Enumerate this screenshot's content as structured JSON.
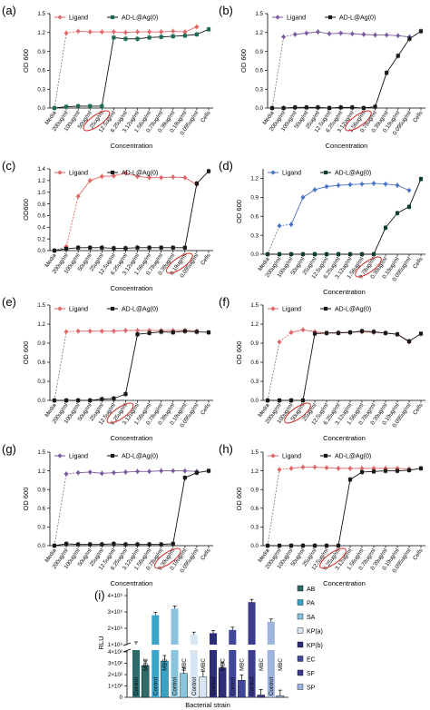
{
  "chart_data": [
    {
      "panel": "(a)",
      "type": "line",
      "categories": [
        "Media",
        "200ug/ml",
        "100ug/ml",
        "50ug/ml",
        "25ug/ml",
        "12.5ug/ml",
        "6.25ug/ml",
        "3.12ug/ml",
        "1.56ug/ml",
        "0.78ug/ml",
        "0.39ug/ml",
        "0.19ug/ml",
        "0.095ug/ml",
        "Cells"
      ],
      "circled": [
        "25ug/ml"
      ],
      "xlabel": "Concentration",
      "ylabel": "OD 600",
      "yticks": [
        "0.0",
        "0.3",
        "0.6",
        "0.9",
        "1.2",
        "1.5"
      ],
      "ylim": [
        0,
        1.5
      ],
      "series": [
        {
          "name": "Ligand",
          "color": "#e06666",
          "values": [
            null,
            1.19,
            1.22,
            1.21,
            1.21,
            1.21,
            1.2,
            1.21,
            1.21,
            1.21,
            1.22,
            1.21,
            1.29,
            null
          ]
        },
        {
          "name": "AD-L@Ag(0)",
          "color": "#1b6b57",
          "values": [
            0.0,
            0.02,
            0.03,
            0.03,
            0.03,
            1.12,
            1.1,
            1.1,
            1.12,
            1.13,
            1.14,
            1.15,
            1.17,
            1.25
          ]
        }
      ]
    },
    {
      "panel": "(b)",
      "type": "line",
      "categories": [
        "Media",
        "200ug/ml",
        "100ug/ml",
        "50ug/ml",
        "25ug/ml",
        "12.5ug/ml",
        "6.25ug/ml",
        "3.12ug/ml",
        "1.56ug/ml",
        "0.78ug/ml",
        "0.39ug/ml",
        "0.19ug/ml",
        "0.095ug/ml",
        "Cells"
      ],
      "circled": [
        "1.56ug/ml"
      ],
      "xlabel": "Concentration",
      "ylabel": "OD 600",
      "yticks": [
        "0.0",
        "0.3",
        "0.6",
        "0.9",
        "1.2",
        "1.5"
      ],
      "ylim": [
        0,
        1.5
      ],
      "series": [
        {
          "name": "Ligand",
          "color": "#7a5a9e",
          "values": [
            null,
            1.13,
            1.17,
            1.19,
            1.21,
            1.18,
            1.19,
            1.18,
            1.17,
            1.16,
            1.16,
            1.15,
            1.13,
            null
          ]
        },
        {
          "name": "AD-L@Ag(0)",
          "color": "#1a1a1a",
          "values": [
            0.0,
            0.0,
            0.01,
            0.01,
            0.01,
            0.0,
            0.01,
            0.01,
            0.0,
            0.02,
            0.56,
            0.83,
            1.1,
            1.22
          ]
        }
      ]
    },
    {
      "panel": "(c)",
      "type": "line",
      "categories": [
        "Media",
        "200ug/ml",
        "100ug/ml",
        "50ug/ml",
        "25ug/ml",
        "12.5ug/ml",
        "6.25ug/ml",
        "3.12ug/ml",
        "1.56ug/ml",
        "0.78ug/ml",
        "0.39ug/ml",
        "0.19ug/ml",
        "0.095ug/ml",
        "Cells"
      ],
      "circled": [
        "0.19ug/ml"
      ],
      "xlabel": "Concentration",
      "ylabel": "OD600",
      "yticks": [
        "0.0",
        "0.2",
        "0.4",
        "0.6",
        "0.8",
        "1.0",
        "1.2",
        "1.4"
      ],
      "ylim": [
        0,
        1.4
      ],
      "series": [
        {
          "name": "Ligand",
          "color": "#e06666",
          "values": [
            null,
            0.07,
            0.93,
            1.2,
            1.27,
            1.28,
            1.33,
            1.27,
            1.25,
            1.25,
            1.26,
            1.25,
            1.13,
            null
          ]
        },
        {
          "name": "AD-L@Ag(0)",
          "color": "#1a1a1a",
          "values": [
            0.0,
            0.03,
            0.05,
            0.05,
            0.05,
            0.04,
            0.04,
            0.05,
            0.05,
            0.05,
            0.05,
            0.05,
            1.15,
            1.36
          ]
        }
      ]
    },
    {
      "panel": "(d)",
      "type": "line",
      "categories": [
        "Media",
        "200ug/ml",
        "100ug/ml",
        "50ug/ml",
        "25ug/ml",
        "12.5ug/ml",
        "6.25ug/ml",
        "3.12ug/ml",
        "1.56ug/ml",
        "0.78ug/ml",
        "0.39ug/ml",
        "0.19ug/ml",
        "0.095ug/ml",
        "Cells"
      ],
      "circled": [
        "0.78ug/ml"
      ],
      "xlabel": "Concentration",
      "ylabel": "OD 600",
      "yticks": [
        "0.0",
        "0.3",
        "0.6",
        "0.9",
        "1.2"
      ],
      "ylim": [
        0,
        1.35
      ],
      "series": [
        {
          "name": "Ligand",
          "color": "#4a72c4",
          "values": [
            null,
            0.45,
            0.47,
            0.9,
            1.02,
            1.07,
            1.09,
            1.1,
            1.11,
            1.12,
            1.11,
            1.09,
            1.01,
            null
          ]
        },
        {
          "name": "AD-L@Ag(0)",
          "color": "#0f3d33",
          "values": [
            0.0,
            0.0,
            0.0,
            0.0,
            0.0,
            0.0,
            0.0,
            0.0,
            0.0,
            0.0,
            0.42,
            0.65,
            0.75,
            1.19
          ]
        }
      ]
    },
    {
      "panel": "(e)",
      "type": "line",
      "categories": [
        "Media",
        "200ug/ml",
        "100ug/ml",
        "50ug/ml",
        "25ug/ml",
        "12.5ug/ml",
        "6.25ug/ml",
        "3.12ug/ml",
        "1.56ug/ml",
        "0.78ug/ml",
        "0.39ug/ml",
        "0.19ug/ml",
        "0.095ug/ml",
        "Cells"
      ],
      "circled": [
        "6.25ug/ml"
      ],
      "xlabel": "Concentration",
      "ylabel": "OD 600",
      "yticks": [
        "0.0",
        "0.3",
        "0.6",
        "0.9",
        "1.2",
        "1.5"
      ],
      "ylim": [
        0,
        1.5
      ],
      "series": [
        {
          "name": "Ligand",
          "color": "#e06666",
          "values": [
            null,
            1.08,
            1.09,
            1.09,
            1.09,
            1.09,
            1.1,
            1.1,
            1.1,
            1.1,
            1.1,
            1.1,
            1.09,
            null
          ]
        },
        {
          "name": "AD-L@Ag(0)",
          "color": "#1a1a1a",
          "values": [
            0.0,
            0.0,
            0.0,
            0.0,
            0.02,
            0.03,
            0.1,
            1.04,
            1.06,
            1.08,
            1.07,
            1.09,
            1.08,
            1.07
          ]
        }
      ]
    },
    {
      "panel": "(f)",
      "type": "line",
      "categories": [
        "Media",
        "200ug/ml",
        "100ug/ml",
        "50ug/ml",
        "25ug/ml",
        "12.5ug/ml",
        "6.25ug/ml",
        "3.12ug/ml",
        "1.56ug/ml",
        "0.78ug/ml",
        "0.39ug/ml",
        "0.19ug/ml",
        "0.095ug/ml",
        "Cells"
      ],
      "circled": [
        "50ug/ml"
      ],
      "xlabel": "Concentration",
      "ylabel": "OD 600",
      "yticks": [
        "0.0",
        "0.3",
        "0.6",
        "0.9",
        "1.2",
        "1.5"
      ],
      "ylim": [
        0,
        1.5
      ],
      "series": [
        {
          "name": "Ligand",
          "color": "#e06666",
          "values": [
            null,
            0.92,
            1.07,
            1.11,
            1.08,
            1.06,
            1.07,
            1.07,
            1.08,
            1.07,
            1.06,
            1.04,
            0.92,
            null
          ]
        },
        {
          "name": "AD-L@Ag(0)",
          "color": "#1a1a1a",
          "values": [
            0.0,
            0.0,
            0.0,
            0.0,
            1.05,
            1.06,
            1.06,
            1.07,
            1.09,
            1.08,
            1.06,
            1.04,
            0.93,
            1.05
          ]
        }
      ]
    },
    {
      "panel": "(g)",
      "type": "line",
      "categories": [
        "Media",
        "200ug/ml",
        "100ug/ml",
        "50ug/ml",
        "25ug/ml",
        "12.5ug/ml",
        "6.25ug/ml",
        "3.12ug/ml",
        "1.56ug/ml",
        "0.78ug/ml",
        "0.39ug/ml",
        "0.19ug/ml",
        "0.095ug/ml",
        "Cells"
      ],
      "circled": [
        "0.39ug/ml"
      ],
      "xlabel": "Concentration",
      "ylabel": "OD 600",
      "yticks": [
        "0.0",
        "0.3",
        "0.6",
        "0.9",
        "1.2",
        "1.5"
      ],
      "ylim": [
        0,
        1.5
      ],
      "series": [
        {
          "name": "Ligand",
          "color": "#7a5a9e",
          "values": [
            null,
            1.15,
            1.17,
            1.18,
            1.16,
            1.17,
            1.18,
            1.19,
            1.19,
            1.2,
            1.2,
            1.2,
            1.19,
            null
          ]
        },
        {
          "name": "AD-L@Ag(0)",
          "color": "#1a1a1a",
          "values": [
            0.0,
            0.03,
            0.02,
            0.02,
            0.02,
            0.03,
            0.02,
            0.02,
            0.02,
            0.02,
            0.03,
            1.09,
            1.17,
            1.2
          ]
        }
      ]
    },
    {
      "panel": "(h)",
      "type": "line",
      "categories": [
        "Media",
        "200ug/ml",
        "100ug/ml",
        "50ug/ml",
        "25ug/ml",
        "12.5ug/ml",
        "6.25ug/ml",
        "3.12ug/ml",
        "1.56ug/ml",
        "0.78ug/ml",
        "0.39ug/ml",
        "0.19ug/ml",
        "0.095ug/ml",
        "Cells"
      ],
      "circled": [
        "6.25ug/ml"
      ],
      "xlabel": "Concentration",
      "ylabel": "OD 600",
      "yticks": [
        "0.0",
        "0.3",
        "0.6",
        "0.9",
        "1.2",
        "1.5"
      ],
      "ylim": [
        0,
        1.5
      ],
      "series": [
        {
          "name": "Ligand",
          "color": "#e06666",
          "values": [
            null,
            1.22,
            1.24,
            1.26,
            1.26,
            1.25,
            1.24,
            1.24,
            1.24,
            1.24,
            1.24,
            1.24,
            1.23,
            null
          ]
        },
        {
          "name": "AD-L@Ag(0)",
          "color": "#1a1a1a",
          "values": [
            0.0,
            0.0,
            0.0,
            0.0,
            0.0,
            0.0,
            0.0,
            1.06,
            1.18,
            1.19,
            1.2,
            1.2,
            1.21,
            1.24
          ]
        }
      ]
    },
    {
      "panel": "(i)",
      "type": "bar",
      "xlabel": "Bacterial strain",
      "ylabel": "RLU",
      "yaxis_upper": {
        "ticks": [
          "1×10⁶",
          "2×10⁶",
          "3×10⁶",
          "4×10⁶"
        ],
        "range": [
          1000000,
          4000000
        ]
      },
      "yaxis_lower": {
        "ticks": [
          "0",
          "1×10²",
          "2×10²",
          "3×10²",
          "4×10²"
        ],
        "range": [
          0,
          400
        ]
      },
      "series_names": [
        "AB",
        "PA",
        "SA",
        "KP(a)",
        "KP(b)",
        "EC",
        "SF",
        "SP"
      ],
      "colors": [
        "#2e6b6b",
        "#3aa4c8",
        "#8ac3dc",
        "#d7e6f2",
        "#2c2e7a",
        "#41489a",
        "#3c3c8e",
        "#9eb4dd"
      ],
      "bars": [
        {
          "strain": "AB",
          "control": 1000000,
          "mbc": 280,
          "control_label": "Control"
        },
        {
          "strain": "PA",
          "control": 2800000,
          "mbc": 320,
          "control_label": "Control"
        },
        {
          "strain": "SA",
          "control": 3200000,
          "mbc": 210,
          "control_label": "Control"
        },
        {
          "strain": "KP(a)",
          "control": 1600000,
          "mbc": 180,
          "control_label": "Control"
        },
        {
          "strain": "KP(b)",
          "control": 1700000,
          "mbc": 260,
          "control_label": "Control"
        },
        {
          "strain": "EC",
          "control": 1900000,
          "mbc": 150,
          "control_label": "Control"
        },
        {
          "strain": "SF",
          "control": 3600000,
          "mbc": 20,
          "control_label": "Control"
        },
        {
          "strain": "SP",
          "control": 2400000,
          "mbc": 15,
          "control_label": "Control"
        }
      ],
      "mbc_label": "MBC"
    }
  ]
}
